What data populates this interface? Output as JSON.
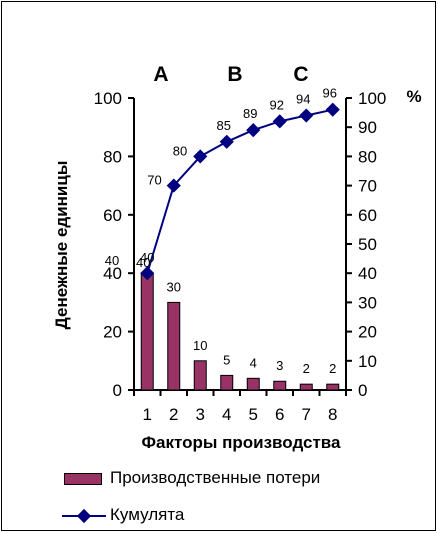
{
  "chart_data": {
    "type": "bar",
    "title": "",
    "groups": [
      "A",
      "B",
      "C"
    ],
    "xlabel": "Факторы производства",
    "ylabel": "Денежные единицы",
    "y2_unit": "%",
    "categories": [
      "1",
      "2",
      "3",
      "4",
      "5",
      "6",
      "7",
      "8"
    ],
    "ylim": [
      0,
      100
    ],
    "yticks": [
      0,
      20,
      40,
      60,
      80,
      100
    ],
    "y2lim": [
      0,
      100
    ],
    "y2ticks": [
      0,
      10,
      20,
      30,
      40,
      50,
      60,
      70,
      80,
      90,
      100
    ],
    "series": [
      {
        "name": "Производственные потери",
        "type": "bar",
        "axis": "left",
        "values": [
          40,
          30,
          10,
          5,
          4,
          3,
          2,
          2
        ],
        "labels": [
          "40",
          "30",
          "10",
          "5",
          "4",
          "3",
          "2",
          "2"
        ]
      },
      {
        "name": "Кумулята",
        "type": "line",
        "axis": "right",
        "values": [
          40,
          70,
          80,
          85,
          89,
          92,
          94,
          96
        ],
        "labels": [
          "40",
          "70",
          "80",
          "85",
          "89",
          "92",
          "94",
          "96"
        ]
      }
    ],
    "extra_label": "40",
    "colors": {
      "bar": "#993366",
      "line": "#000080",
      "marker": "#000080"
    },
    "grid": false,
    "legend_position": "bottom"
  }
}
